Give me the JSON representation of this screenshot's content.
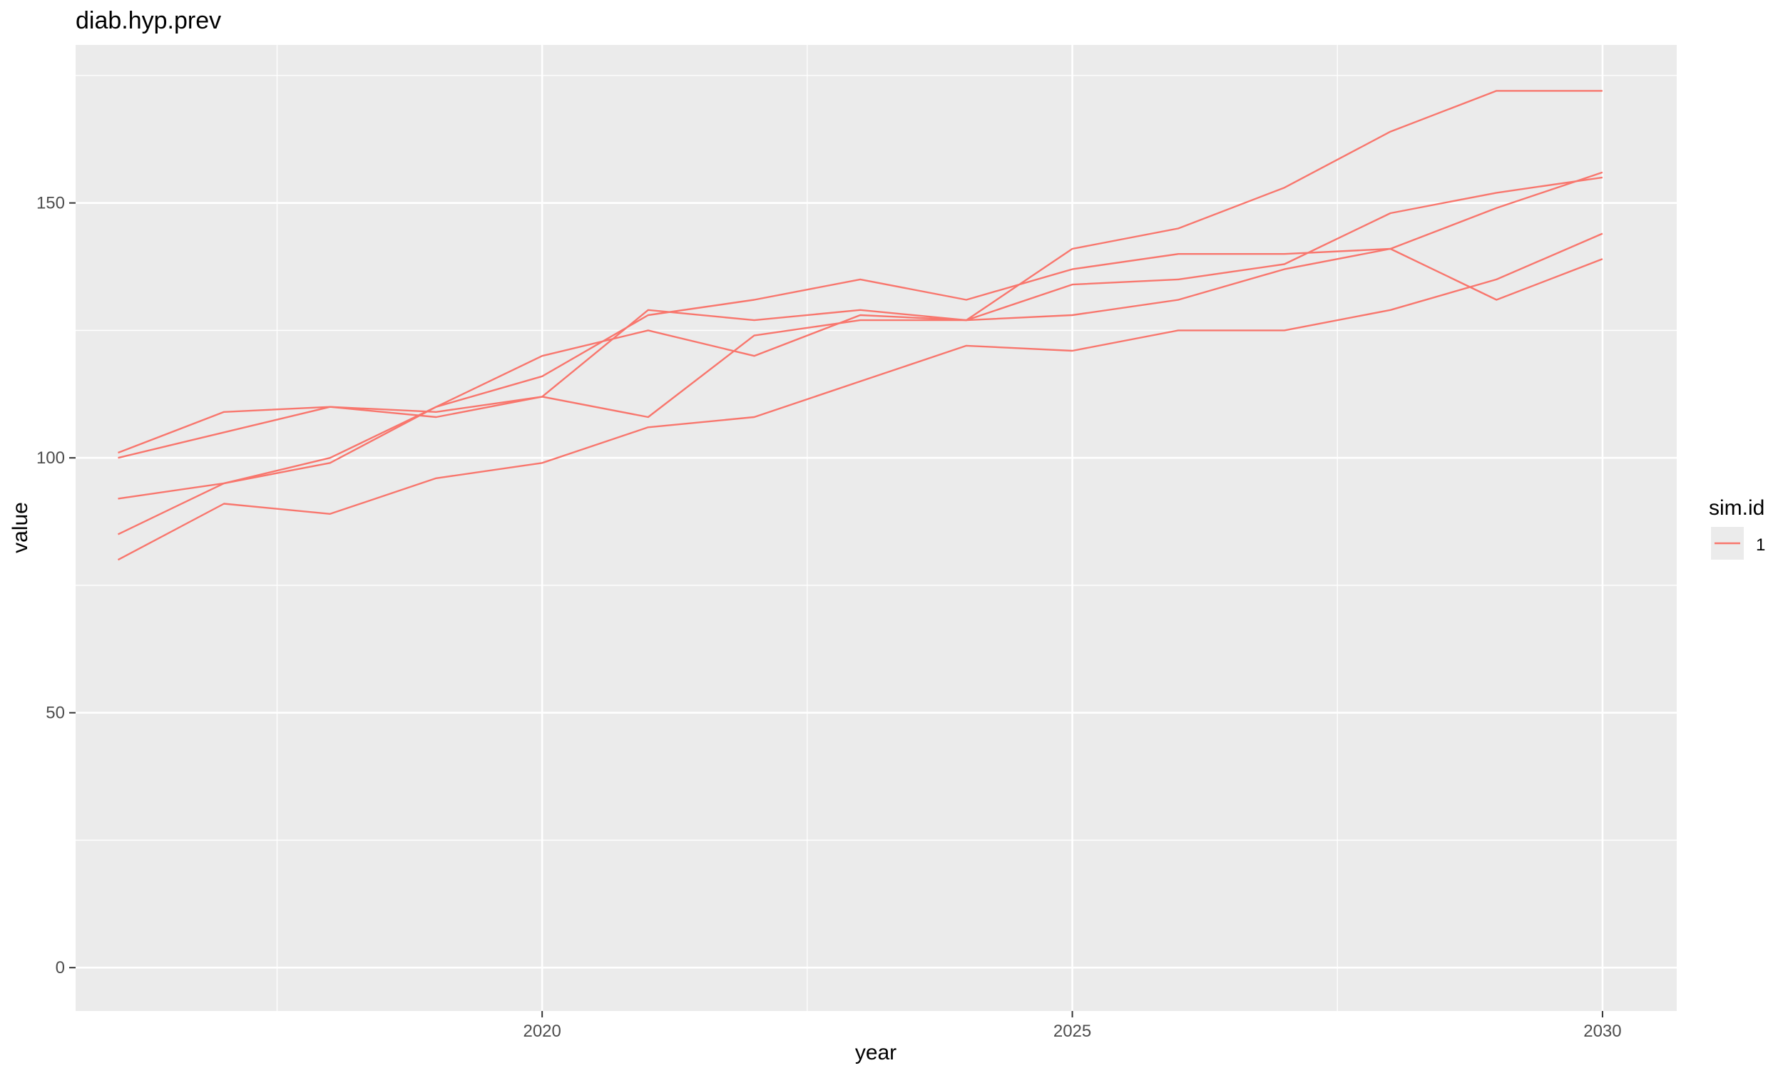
{
  "chart_data": {
    "type": "line",
    "title": "diab.hyp.prev",
    "xlabel": "year",
    "ylabel": "value",
    "xlim": [
      2015.6,
      2030.7
    ],
    "ylim": [
      -8.5,
      181
    ],
    "x_ticks": [
      2020,
      2025,
      2030
    ],
    "x_tick_labels": [
      "2020",
      "2025",
      "2030"
    ],
    "y_ticks": [
      0,
      50,
      100,
      150
    ],
    "y_tick_labels": [
      "0",
      "50",
      "100",
      "150"
    ],
    "grid": true,
    "legend": {
      "title": "sim.id",
      "placement": "right",
      "entries": [
        {
          "label": "1",
          "color": "#F8766D"
        }
      ]
    },
    "colors": {
      "line": "#F8766D",
      "panel": "#EBEBEB",
      "grid": "#FFFFFF",
      "text": "#000000",
      "tick_text": "#4D4D4D"
    },
    "x": [
      2016,
      2017,
      2018,
      2019,
      2020,
      2021,
      2022,
      2023,
      2024,
      2025,
      2026,
      2027,
      2028,
      2029,
      2030
    ],
    "series": [
      {
        "values": [
          101,
          109,
          110,
          109,
          112,
          108,
          124,
          127,
          127,
          134,
          135,
          138,
          148,
          152,
          155
        ]
      },
      {
        "values": [
          100,
          105,
          110,
          108,
          112,
          129,
          127,
          129,
          127,
          141,
          145,
          153,
          164,
          172,
          172
        ]
      },
      {
        "values": [
          92,
          95,
          100,
          110,
          116,
          128,
          131,
          135,
          131,
          137,
          140,
          140,
          141,
          131,
          139
        ]
      },
      {
        "values": [
          85,
          95,
          99,
          110,
          120,
          125,
          120,
          128,
          127,
          128,
          131,
          137,
          141,
          149,
          156
        ]
      },
      {
        "values": [
          80,
          91,
          89,
          96,
          99,
          106,
          108,
          115,
          122,
          121,
          125,
          125,
          129,
          135,
          144
        ]
      }
    ]
  }
}
